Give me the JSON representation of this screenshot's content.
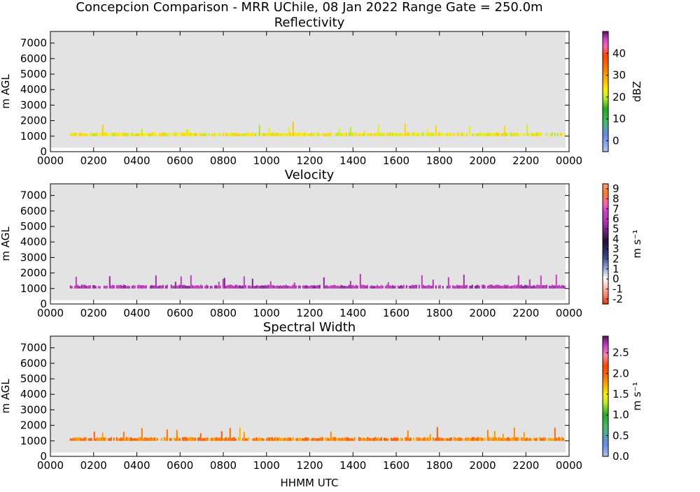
{
  "figure": {
    "suptitle": "Concepcion Comparison - MRR UChile, 08 Jan 2022 Range Gate = 250.0m",
    "xlabel": "HHMM UTC"
  },
  "chart_data": [
    {
      "type": "heatmap",
      "title": "Reflectivity",
      "xlabel": "",
      "ylabel": "m AGL",
      "x_ticks": [
        "0000",
        "0200",
        "0400",
        "0600",
        "0800",
        "1000",
        "1200",
        "1400",
        "1600",
        "1800",
        "2000",
        "2200",
        "0000"
      ],
      "y_ticks": [
        "0",
        "1000",
        "2000",
        "3000",
        "4000",
        "5000",
        "6000",
        "7000"
      ],
      "ylim": [
        0,
        7750
      ],
      "colorbar": {
        "label": "dBZ",
        "ticks": [
          "0",
          "10",
          "20",
          "30",
          "40"
        ],
        "range": [
          -5,
          50
        ]
      },
      "data_description": "Echo band mostly 1000-1250 m AGL from ~0100 to ~2350 UTC, values ~18-28 dBZ",
      "dominant_value": 23,
      "band_top_m": 1250,
      "band_bottom_m": 1000
    },
    {
      "type": "heatmap",
      "title": "Velocity",
      "xlabel": "",
      "ylabel": "m AGL",
      "x_ticks": [
        "0000",
        "0200",
        "0400",
        "0600",
        "0800",
        "1000",
        "1200",
        "1400",
        "1600",
        "1800",
        "2000",
        "2200",
        "0000"
      ],
      "y_ticks": [
        "0",
        "1000",
        "2000",
        "3000",
        "4000",
        "5000",
        "6000",
        "7000"
      ],
      "ylim": [
        0,
        7750
      ],
      "colorbar": {
        "label": "m s⁻¹",
        "ticks": [
          "-2",
          "-1",
          "0",
          "1",
          "2",
          "3",
          "4",
          "5",
          "6",
          "7",
          "8",
          "9"
        ],
        "range": [
          -2.5,
          9.5
        ]
      },
      "dominant_value": 5.8,
      "band_top_m": 1250,
      "band_bottom_m": 1000
    },
    {
      "type": "heatmap",
      "title": "Spectral Width",
      "xlabel": "HHMM UTC",
      "ylabel": "m AGL",
      "x_ticks": [
        "0000",
        "0200",
        "0400",
        "0600",
        "0800",
        "1000",
        "1200",
        "1400",
        "1600",
        "1800",
        "2000",
        "2200",
        "0000"
      ],
      "y_ticks": [
        "0",
        "1000",
        "2000",
        "3000",
        "4000",
        "5000",
        "6000",
        "7000"
      ],
      "ylim": [
        0,
        7750
      ],
      "colorbar": {
        "label": "m s⁻¹",
        "ticks": [
          "0.0",
          "0.5",
          "1.0",
          "1.5",
          "2.0",
          "2.5"
        ],
        "range": [
          0,
          2.9
        ]
      },
      "dominant_value": 1.9,
      "band_top_m": 1250,
      "band_bottom_m": 1000
    }
  ],
  "colors": {
    "plot_background": "#e3e3e3",
    "frame": "#000000"
  }
}
